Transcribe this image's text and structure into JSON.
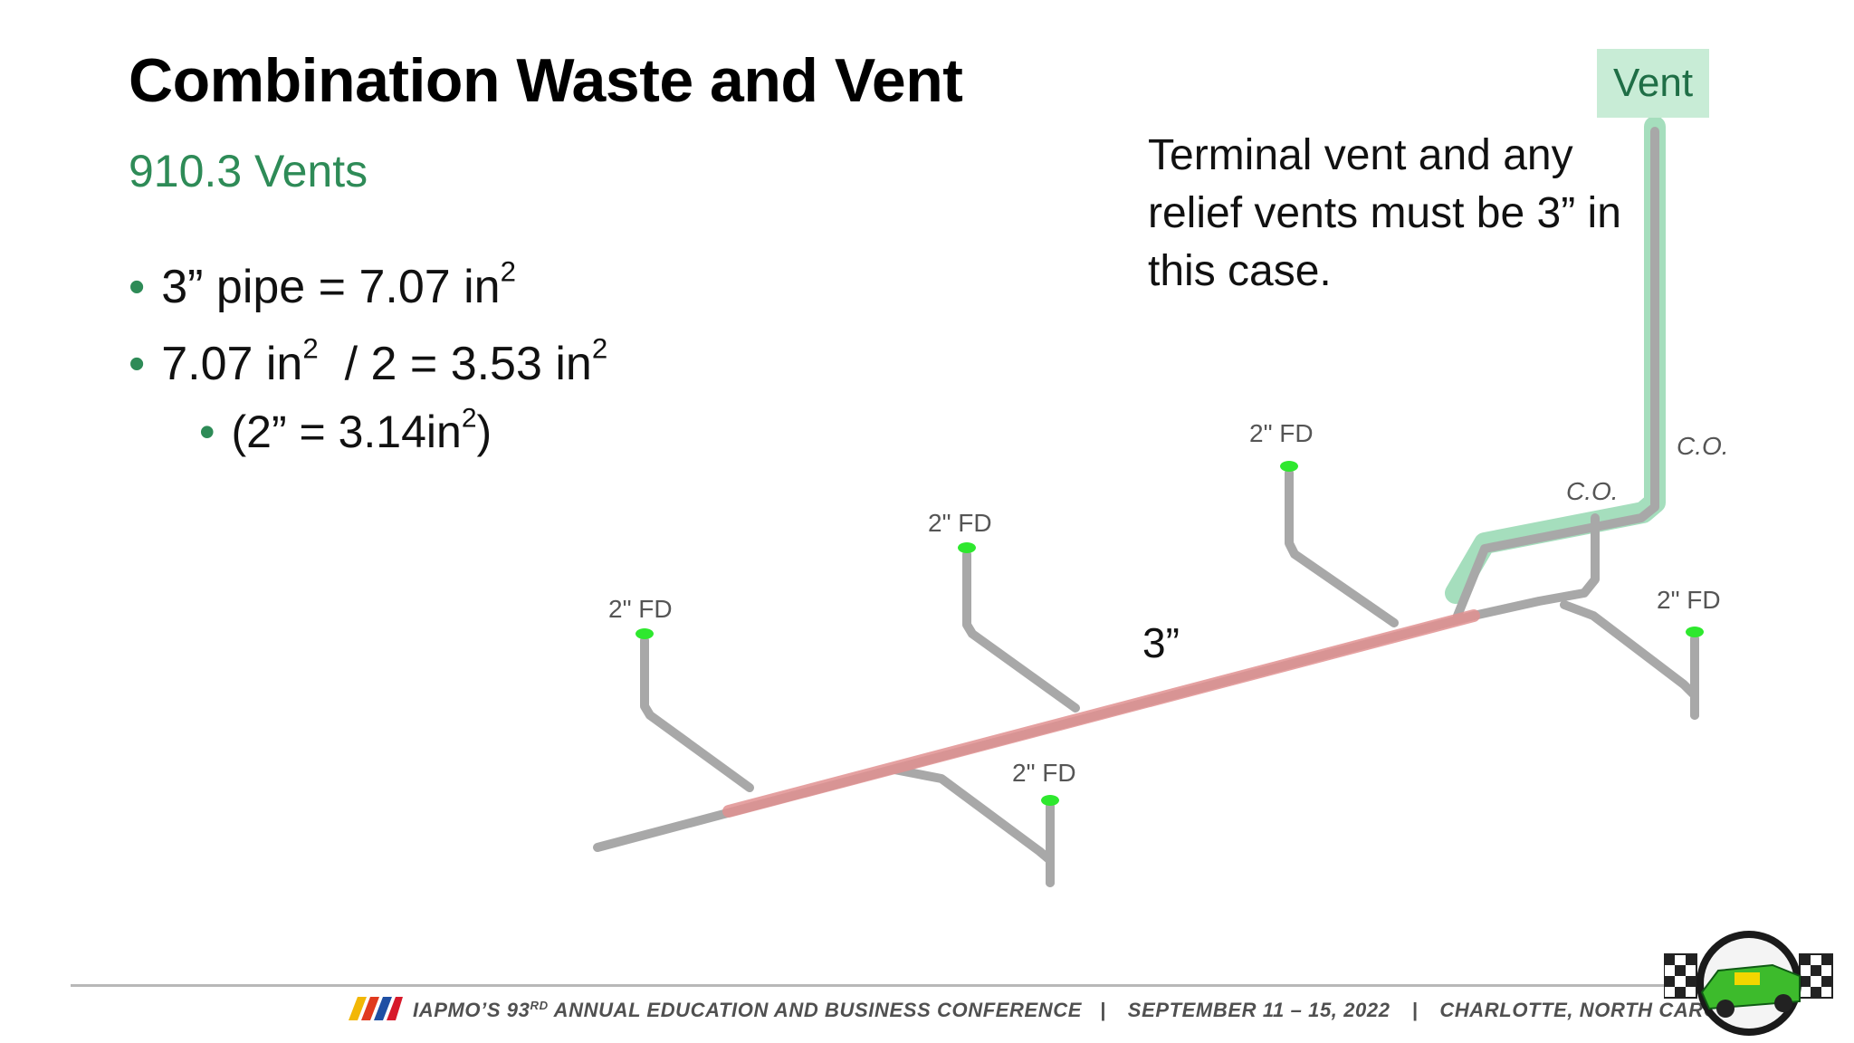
{
  "slide": {
    "title": "Combination Waste and Vent",
    "subtitle": "910.3 Vents",
    "bullets": [
      {
        "text": "3” pipe = 7.07 in",
        "sup": "2"
      },
      {
        "text_a": "7.07 in",
        "sup_a": "2",
        "text_b": "  / 2 = 3.53 in",
        "sup_b": "2"
      },
      {
        "text_a": "(2” = 3.14in",
        "sup_a": "2",
        "text_b": ")"
      }
    ],
    "callout": "Terminal vent and any relief vents must be 3” in this case."
  },
  "diagram": {
    "vent_label": "Vent",
    "main_size_label": "3”",
    "floor_drain_label": "2\" FD",
    "cleanout_label": "C.O.",
    "colors": {
      "pipe": "#a8a8a8",
      "main_highlight": "#e09090",
      "vent_highlight": "#8fd6ad",
      "drain_cap": "#2ee82e"
    }
  },
  "footer": {
    "conference": "IAPMO’S 93",
    "ordinal": "RD",
    "conference_rest": " ANNUAL EDUCATION AND BUSINESS CONFERENCE",
    "separator": "|",
    "dates": "SEPTEMBER 11 – 15, 2022",
    "location": "CHARLOTTE, NORTH CAROLINA",
    "stripe_colors": [
      "#f2b705",
      "#e03a1e",
      "#1f4fa3",
      "#d7192a"
    ],
    "logo_icon": "race-car-emblem-icon"
  }
}
